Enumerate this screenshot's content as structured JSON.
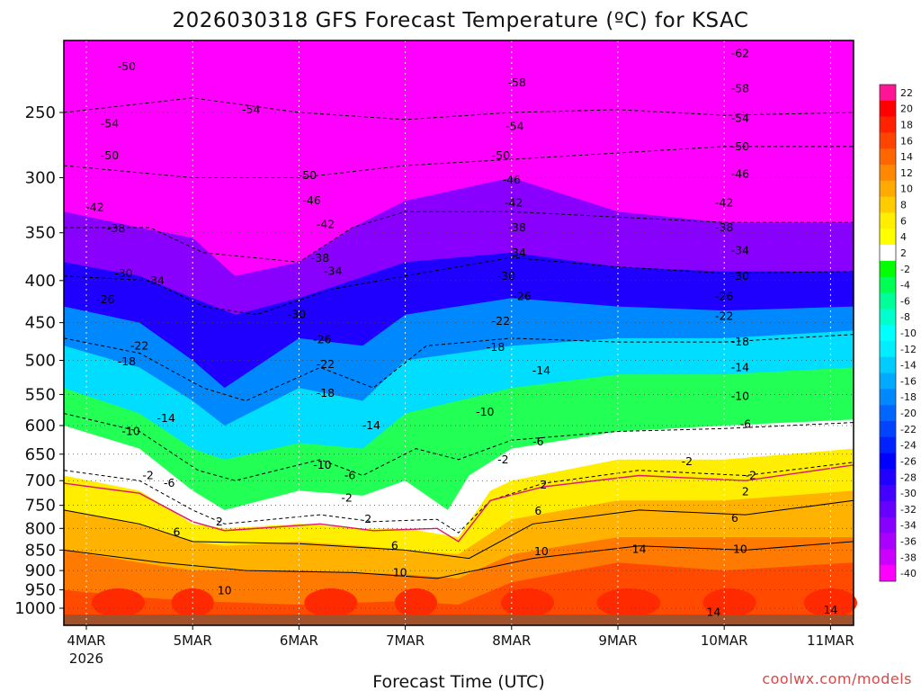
{
  "chart_data": {
    "type": "heatmap",
    "title": "2026030318 GFS Forecast Temperature (ºC) for KSAC",
    "xlabel": "Forecast Time (UTC)",
    "ylabel": "",
    "credit": "coolwx.com/models",
    "x_ticks": [
      {
        "label": "4MAR",
        "sub": "2026",
        "day": 0
      },
      {
        "label": "5MAR",
        "sub": "",
        "day": 1
      },
      {
        "label": "6MAR",
        "sub": "",
        "day": 2
      },
      {
        "label": "7MAR",
        "sub": "",
        "day": 3
      },
      {
        "label": "8MAR",
        "sub": "",
        "day": 4
      },
      {
        "label": "9MAR",
        "sub": "",
        "day": 5
      },
      {
        "label": "10MAR",
        "sub": "",
        "day": 6
      },
      {
        "label": "11MAR",
        "sub": "",
        "day": 7
      }
    ],
    "y_ticks": [
      250,
      300,
      350,
      400,
      450,
      500,
      550,
      600,
      650,
      700,
      750,
      800,
      850,
      900,
      950,
      1000
    ],
    "y_axis_scale": "log pressure (hPa), inverted",
    "colorbar": {
      "levels": [
        22,
        20,
        18,
        16,
        14,
        12,
        10,
        8,
        6,
        4,
        2,
        -2,
        -4,
        -6,
        -8,
        -10,
        -12,
        -14,
        -16,
        -18,
        -20,
        -22,
        -24,
        -26,
        -28,
        -30,
        -32,
        -34,
        -36,
        -38,
        -40
      ],
      "colors": [
        "#ff1493",
        "#ff0000",
        "#ff2200",
        "#ff4400",
        "#ff6600",
        "#ff8800",
        "#ffaa00",
        "#ffcc00",
        "#ffee00",
        "#ffff00",
        "#ffffff",
        "#00ff00",
        "#00ff55",
        "#00ff99",
        "#00ffcc",
        "#00ffff",
        "#00eeff",
        "#00ccff",
        "#00aaff",
        "#0088ff",
        "#0066ff",
        "#0044ff",
        "#0022ff",
        "#0000ff",
        "#2200ff",
        "#4400ff",
        "#6600ff",
        "#8800ff",
        "#aa00ff",
        "#cc00ff",
        "#ff00ff"
      ]
    },
    "contour_labels": [
      {
        "text": "-50",
        "day": 0.38,
        "p": 220
      },
      {
        "text": "-54",
        "day": 1.55,
        "p": 248
      },
      {
        "text": "-54",
        "day": 0.22,
        "p": 258
      },
      {
        "text": "-50",
        "day": 0.22,
        "p": 282
      },
      {
        "text": "-50",
        "day": 2.08,
        "p": 298
      },
      {
        "text": "-46",
        "day": 2.12,
        "p": 320
      },
      {
        "text": "-42",
        "day": 0.08,
        "p": 326
      },
      {
        "text": "-42",
        "day": 2.25,
        "p": 342
      },
      {
        "text": "-38",
        "day": 0.28,
        "p": 346
      },
      {
        "text": "-38",
        "day": 2.2,
        "p": 376
      },
      {
        "text": "-34",
        "day": 2.32,
        "p": 390
      },
      {
        "text": "-30",
        "day": 0.35,
        "p": 392
      },
      {
        "text": "-34",
        "day": 0.65,
        "p": 400
      },
      {
        "text": "-26",
        "day": 0.18,
        "p": 422
      },
      {
        "text": "-30",
        "day": 1.98,
        "p": 440
      },
      {
        "text": "-22",
        "day": 0.5,
        "p": 480
      },
      {
        "text": "-26",
        "day": 2.22,
        "p": 472
      },
      {
        "text": "-22",
        "day": 2.25,
        "p": 506
      },
      {
        "text": "-18",
        "day": 0.38,
        "p": 502
      },
      {
        "text": "-18",
        "day": 2.25,
        "p": 548
      },
      {
        "text": "-14",
        "day": 0.75,
        "p": 588
      },
      {
        "text": "-14",
        "day": 2.68,
        "p": 600
      },
      {
        "text": "-10",
        "day": 0.42,
        "p": 610
      },
      {
        "text": "-10",
        "day": 2.22,
        "p": 670
      },
      {
        "text": "-6",
        "day": 2.48,
        "p": 690
      },
      {
        "text": "-6",
        "day": 0.78,
        "p": 705
      },
      {
        "text": "-2",
        "day": 0.58,
        "p": 690
      },
      {
        "text": "-2",
        "day": 2.45,
        "p": 735
      },
      {
        "text": "2",
        "day": 1.25,
        "p": 785
      },
      {
        "text": "2",
        "day": 2.65,
        "p": 780
      },
      {
        "text": "6",
        "day": 0.85,
        "p": 808
      },
      {
        "text": "6",
        "day": 2.9,
        "p": 840
      },
      {
        "text": "10",
        "day": 2.95,
        "p": 905
      },
      {
        "text": "10",
        "day": 1.3,
        "p": 952
      },
      {
        "text": "10",
        "day": 4.28,
        "p": 853
      },
      {
        "text": "14",
        "day": 5.2,
        "p": 848
      },
      {
        "text": "-58",
        "day": 4.05,
        "p": 230
      },
      {
        "text": "-54",
        "day": 4.03,
        "p": 260
      },
      {
        "text": "-50",
        "day": 3.9,
        "p": 282
      },
      {
        "text": "-46",
        "day": 4.0,
        "p": 302
      },
      {
        "text": "-42",
        "day": 4.02,
        "p": 322
      },
      {
        "text": "-38",
        "day": 4.05,
        "p": 345
      },
      {
        "text": "-34",
        "day": 4.05,
        "p": 370
      },
      {
        "text": "-30",
        "day": 3.95,
        "p": 395
      },
      {
        "text": "-26",
        "day": 4.1,
        "p": 418
      },
      {
        "text": "-22",
        "day": 3.9,
        "p": 448
      },
      {
        "text": "-18",
        "day": 3.85,
        "p": 482
      },
      {
        "text": "-14",
        "day": 4.28,
        "p": 515
      },
      {
        "text": "-10",
        "day": 3.75,
        "p": 578
      },
      {
        "text": "-6",
        "day": 4.25,
        "p": 628
      },
      {
        "text": "-2",
        "day": 3.92,
        "p": 660
      },
      {
        "text": "2",
        "day": 4.3,
        "p": 708
      },
      {
        "text": "6",
        "day": 4.25,
        "p": 762
      },
      {
        "text": "-62",
        "day": 6.15,
        "p": 212
      },
      {
        "text": "-58",
        "day": 6.15,
        "p": 234
      },
      {
        "text": "-54",
        "day": 6.15,
        "p": 254
      },
      {
        "text": "-50",
        "day": 6.15,
        "p": 275
      },
      {
        "text": "-46",
        "day": 6.15,
        "p": 297
      },
      {
        "text": "-42",
        "day": 6.0,
        "p": 322
      },
      {
        "text": "-38",
        "day": 6.0,
        "p": 345
      },
      {
        "text": "-34",
        "day": 6.15,
        "p": 368
      },
      {
        "text": "-30",
        "day": 6.15,
        "p": 395
      },
      {
        "text": "-26",
        "day": 6.0,
        "p": 418
      },
      {
        "text": "-22",
        "day": 6.0,
        "p": 442
      },
      {
        "text": "-18",
        "day": 6.15,
        "p": 475
      },
      {
        "text": "-14",
        "day": 6.15,
        "p": 510
      },
      {
        "text": "-10",
        "day": 6.15,
        "p": 553
      },
      {
        "text": "-6",
        "day": 6.2,
        "p": 598
      },
      {
        "text": "-2",
        "day": 5.65,
        "p": 664
      },
      {
        "text": "-2",
        "day": 6.25,
        "p": 690
      },
      {
        "text": "2",
        "day": 6.2,
        "p": 722
      },
      {
        "text": "6",
        "day": 6.1,
        "p": 778
      },
      {
        "text": "10",
        "day": 6.15,
        "p": 848
      },
      {
        "text": "14",
        "day": 5.9,
        "p": 1012
      },
      {
        "text": "14",
        "day": 7.0,
        "p": 1005
      }
    ]
  }
}
